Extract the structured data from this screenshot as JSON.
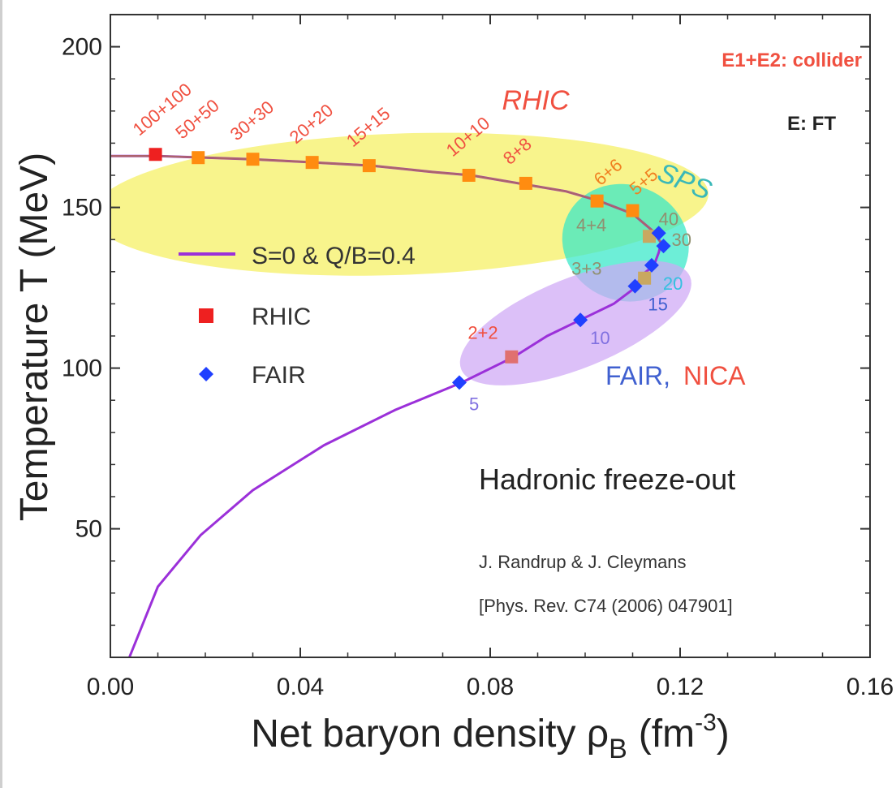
{
  "chart_data": {
    "type": "scatter",
    "xlabel": "Net baryon density ρ",
    "xlabel_sub": "B",
    "xlabel_unit": "(fm",
    "xlabel_exp": "-3",
    "xlabel_close": ")",
    "ylabel": "Temperature T (MeV)",
    "xlim": [
      0.0,
      0.16
    ],
    "ylim": [
      10,
      210
    ],
    "x_ticks": [
      {
        "value": 0.0,
        "label": "0.00"
      },
      {
        "value": 0.04,
        "label": "0.04"
      },
      {
        "value": 0.08,
        "label": "0.08"
      },
      {
        "value": 0.12,
        "label": "0.12"
      },
      {
        "value": 0.16,
        "label": "0.16"
      }
    ],
    "y_ticks": [
      {
        "value": 50,
        "label": "50"
      },
      {
        "value": 100,
        "label": "100"
      },
      {
        "value": 150,
        "label": "150"
      },
      {
        "value": 200,
        "label": "200"
      }
    ],
    "curve": {
      "name": "S=0 & Q/B=0.4",
      "color": "#9b30d9",
      "points": [
        [
          0.0,
          166
        ],
        [
          0.01,
          166
        ],
        [
          0.02,
          165.5
        ],
        [
          0.03,
          165
        ],
        [
          0.043,
          164
        ],
        [
          0.055,
          163
        ],
        [
          0.068,
          161
        ],
        [
          0.076,
          160
        ],
        [
          0.088,
          157
        ],
        [
          0.096,
          155
        ],
        [
          0.103,
          152
        ],
        [
          0.11,
          148
        ],
        [
          0.114,
          143
        ],
        [
          0.116,
          139
        ],
        [
          0.1155,
          136
        ],
        [
          0.1145,
          132
        ],
        [
          0.112,
          129
        ],
        [
          0.1105,
          125
        ],
        [
          0.106,
          120
        ],
        [
          0.099,
          115
        ],
        [
          0.092,
          110
        ],
        [
          0.085,
          103.5
        ],
        [
          0.074,
          95.5
        ],
        [
          0.06,
          87
        ],
        [
          0.045,
          76
        ],
        [
          0.03,
          62
        ],
        [
          0.019,
          48
        ],
        [
          0.01,
          32
        ],
        [
          0.004,
          10
        ]
      ]
    },
    "rhic_points": {
      "name": "RHIC",
      "color": "#ff8c10",
      "points": [
        {
          "x": 0.0095,
          "y": 166.5,
          "label": "100+100"
        },
        {
          "x": 0.0185,
          "y": 165.5,
          "label": "50+50"
        },
        {
          "x": 0.03,
          "y": 165,
          "label": "30+30"
        },
        {
          "x": 0.0425,
          "y": 164,
          "label": "20+20"
        },
        {
          "x": 0.0545,
          "y": 163,
          "label": "15+15"
        },
        {
          "x": 0.0755,
          "y": 160,
          "label": "10+10"
        },
        {
          "x": 0.0875,
          "y": 157.5,
          "label": "8+8"
        },
        {
          "x": 0.1025,
          "y": 152,
          "label": "6+6"
        },
        {
          "x": 0.11,
          "y": 149,
          "label": "5+5"
        },
        {
          "x": 0.1135,
          "y": 141,
          "label": "4+4"
        },
        {
          "x": 0.1125,
          "y": 128,
          "label": "3+3"
        },
        {
          "x": 0.0845,
          "y": 103.5,
          "label": "2+2"
        }
      ]
    },
    "fair_points": {
      "name": "FAIR",
      "color": "#2040ff",
      "points": [
        {
          "x": 0.0735,
          "y": 95.5,
          "label": "5"
        },
        {
          "x": 0.099,
          "y": 115,
          "label": "10"
        },
        {
          "x": 0.1105,
          "y": 125.5,
          "label": "15"
        },
        {
          "x": 0.114,
          "y": 132,
          "label": "20"
        },
        {
          "x": 0.1165,
          "y": 138,
          "label": "30"
        },
        {
          "x": 0.1155,
          "y": 142,
          "label": "40"
        }
      ]
    },
    "regions": [
      {
        "name": "RHIC",
        "color": "#f5f060",
        "cx": 0.061,
        "cy": 151,
        "rx": 0.065,
        "ry": 22
      },
      {
        "name": "SPS",
        "color": "#34e8c8",
        "cx": 0.1085,
        "cy": 139,
        "rx": 0.0135,
        "ry": 18
      },
      {
        "name": "FAIR, NICA",
        "color": "#cfa8f5",
        "cx": 0.098,
        "cy": 114,
        "rx": 0.026,
        "ry": 14
      }
    ],
    "legend": [
      {
        "label": "S=0 & Q/B=0.4",
        "kind": "line"
      },
      {
        "label": "RHIC",
        "kind": "square"
      },
      {
        "label": "FAIR",
        "kind": "diamond"
      }
    ],
    "annotations": {
      "collider": "E1+E2:  collider",
      "ft": "E:  FT",
      "rhic": "RHIC",
      "sps": "SPS",
      "fair": "FAIR,",
      "nica": "NICA",
      "title": "Hadronic freeze-out",
      "authors": "J. Randrup & J. Cleymans",
      "reference": "[Phys. Rev. C74 (2006) 047901]"
    },
    "colors": {
      "red_text": "#f05040",
      "orange_text": "#f08020",
      "teal_text": "#3ab8b8",
      "blue_text": "#4060d0",
      "purple_text": "#8070e0",
      "gray_text": "#909070",
      "rhic_red": "#ee2020"
    }
  }
}
